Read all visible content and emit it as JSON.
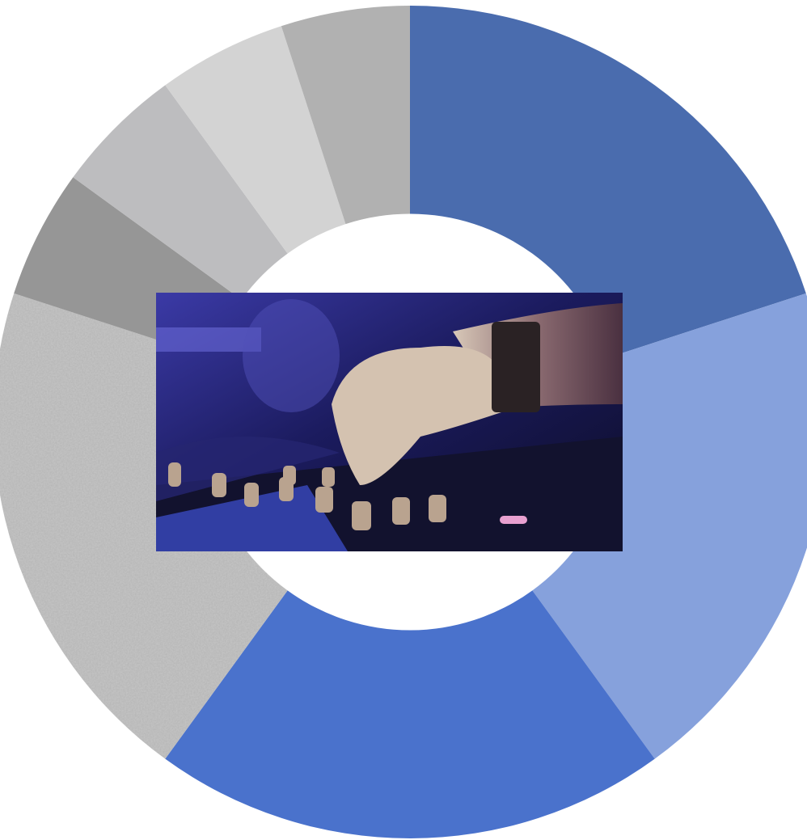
{
  "chart_data": {
    "type": "donut",
    "values": [
      20,
      20,
      20,
      20,
      5,
      5,
      5,
      5
    ],
    "colors": [
      "#4a6cae",
      "#86a1dc",
      "#4a72cc",
      "#a5a5a5",
      "#969696",
      "#bdbdbf",
      "#d3d3d3",
      "#b1b1b1"
    ],
    "textures": [
      null,
      null,
      null,
      "noise",
      null,
      null,
      null,
      null
    ],
    "start_angle": 0,
    "direction": "clockwise",
    "hole": 0.5
  }
}
